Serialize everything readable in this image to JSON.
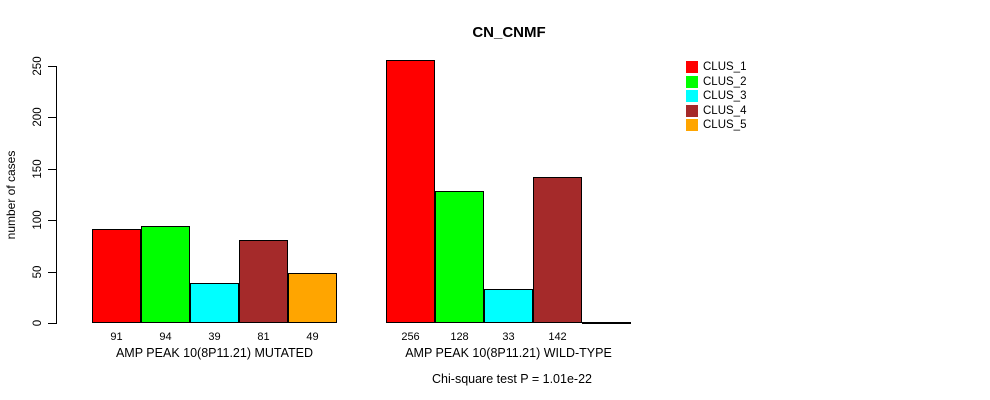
{
  "title": "CN_CNMF",
  "chart_data": {
    "type": "bar",
    "title": "CN_CNMF",
    "ylabel": "number of cases",
    "ylim": [
      0,
      250
    ],
    "y_ticks": [
      0,
      50,
      100,
      150,
      200,
      250
    ],
    "grid": false,
    "legend_position": "right",
    "clusters": [
      {
        "name": "CLUS_1",
        "color": "#FF0000"
      },
      {
        "name": "CLUS_2",
        "color": "#00FF00"
      },
      {
        "name": "CLUS_3",
        "color": "#00FFFF"
      },
      {
        "name": "CLUS_4",
        "color": "#A52A2A"
      },
      {
        "name": "CLUS_5",
        "color": "#FFA500"
      }
    ],
    "groups": [
      {
        "label": "AMP PEAK 10(8P11.21) MUTATED",
        "values": [
          91,
          94,
          39,
          81,
          49
        ],
        "bar_labels": [
          "91",
          "94",
          "39",
          "81",
          "49"
        ]
      },
      {
        "label": "AMP PEAK 10(8P11.21) WILD-TYPE",
        "values": [
          256,
          128,
          33,
          142,
          0
        ],
        "bar_labels": [
          "256",
          "128",
          "33",
          "142",
          ""
        ]
      }
    ],
    "annotation": "Chi-square test P = 1.01e-22"
  }
}
